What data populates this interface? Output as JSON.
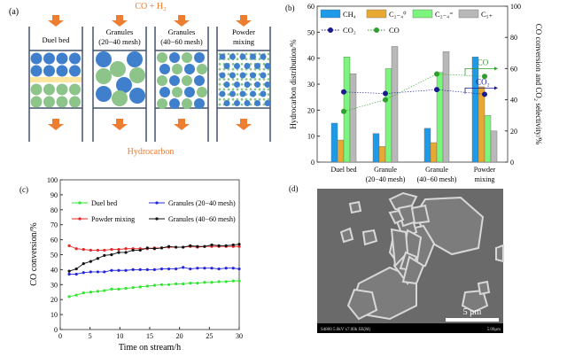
{
  "panel_a": {
    "label": "(a)",
    "feed": "CO + H₂",
    "product": "Hydrocarbon",
    "columns": [
      "Duel bed",
      "Granules|(20−40 mesh)",
      "Granules|(40−60 mesh)",
      "Powder|mixing"
    ],
    "colors": {
      "arrow": "#ED7D31",
      "catalyst_blue": "#3F7FCB",
      "catalyst_green": "#8CC48A",
      "quartz": "#FCE6A0",
      "wall": "#44546A"
    }
  },
  "chart_data": [
    {
      "panel": "(b)",
      "type": "bar",
      "categories": [
        "Duel bed",
        "Granule|(20−40 mesh)",
        "Granule|(40−60 mesh)",
        "Powder|mixing"
      ],
      "ylabel": "Hydrocarbon distribution/%",
      "ylim": [
        0,
        60
      ],
      "yticks": [
        0,
        10,
        20,
        30,
        40,
        50,
        60
      ],
      "y2label": "CO conversion and CO₂ selectivity/%",
      "y2lim": [
        0,
        100
      ],
      "y2ticks": [
        0,
        20,
        40,
        60,
        80,
        100
      ],
      "legend": "top",
      "series": [
        {
          "name": "CH₄",
          "color": "#1E9BE8",
          "values": [
            15,
            11,
            13,
            40.5
          ]
        },
        {
          "name": "C₂₋₄⁰",
          "color": "#E8A933",
          "values": [
            8.5,
            6,
            7.5,
            29
          ]
        },
        {
          "name": "C₂₋₄⁼",
          "color": "#7CF57C",
          "values": [
            40.5,
            36,
            34.5,
            18
          ]
        },
        {
          "name": "C₅₊",
          "color": "#B8B8B8",
          "values": [
            34,
            44.5,
            42.5,
            12
          ]
        }
      ],
      "line_series": [
        {
          "name": "CO₂",
          "axis": "right",
          "color": "#1A1A8C",
          "values": [
            45,
            44,
            46.5,
            43.5
          ]
        },
        {
          "name": "CO",
          "axis": "right",
          "color": "#2E9E2E",
          "values": [
            32.5,
            40,
            56.5,
            55
          ]
        }
      ],
      "annotations": [
        "CO",
        "CO₂"
      ]
    },
    {
      "panel": "(c)",
      "type": "line",
      "xlabel": "Time on stream/h",
      "ylabel": "CO conversion/%",
      "xlim": [
        0,
        30
      ],
      "ylim": [
        0,
        100
      ],
      "xticks": [
        0,
        5,
        10,
        15,
        20,
        25,
        30
      ],
      "yticks": [
        0,
        10,
        20,
        30,
        40,
        50,
        60,
        70,
        80,
        90,
        100
      ],
      "legend": "top",
      "x": [
        1.5,
        2.7,
        3.9,
        5.1,
        6.3,
        7.4,
        8.6,
        9.8,
        11,
        12.2,
        13.4,
        14.6,
        15.8,
        17,
        18.2,
        19.4,
        20.6,
        21.8,
        23,
        24.2,
        25.4,
        26.6,
        27.8,
        29,
        30
      ],
      "series": [
        {
          "name": "Duel bed",
          "color": "#2EE82E",
          "values": [
            22,
            23,
            24.5,
            25,
            25.5,
            26,
            27,
            27,
            27.5,
            28,
            28.5,
            29,
            29.5,
            30,
            30,
            30.5,
            30.5,
            31,
            31,
            31.5,
            31.5,
            32,
            32,
            32.5,
            32.5
          ]
        },
        {
          "name": "Granules (20−40 mesh)",
          "color": "#2424E0",
          "values": [
            37,
            37,
            38,
            38.5,
            38.5,
            38.5,
            39.5,
            39.5,
            39.5,
            40,
            40,
            40,
            40,
            40.5,
            40.5,
            40.5,
            41.5,
            40.5,
            41,
            41,
            41,
            40.5,
            41,
            41,
            40.5
          ]
        },
        {
          "name": "Powder mixing",
          "color": "#E82424",
          "values": [
            56,
            54,
            53.5,
            53,
            53,
            53,
            53.5,
            53.5,
            54,
            54,
            54,
            54,
            54.5,
            54.5,
            55,
            55,
            55,
            55.5,
            55,
            55.5,
            55.5,
            55.5,
            55.5,
            55.5,
            55.5
          ]
        },
        {
          "name": "Granules (40−60 mesh)",
          "color": "#111111",
          "values": [
            39,
            40.5,
            44,
            45.5,
            47.5,
            49.5,
            50,
            51.5,
            51.5,
            53,
            53,
            54.5,
            54,
            54.5,
            55.5,
            55,
            55,
            56,
            55.5,
            55.5,
            56.5,
            56,
            56,
            56.5,
            57
          ]
        }
      ]
    }
  ],
  "panel_d": {
    "label": "(d)",
    "scale_bar": "5 μm",
    "info_left": "S4800 5.0kV x7.00k SE(M)",
    "info_right": "5.00μm"
  }
}
